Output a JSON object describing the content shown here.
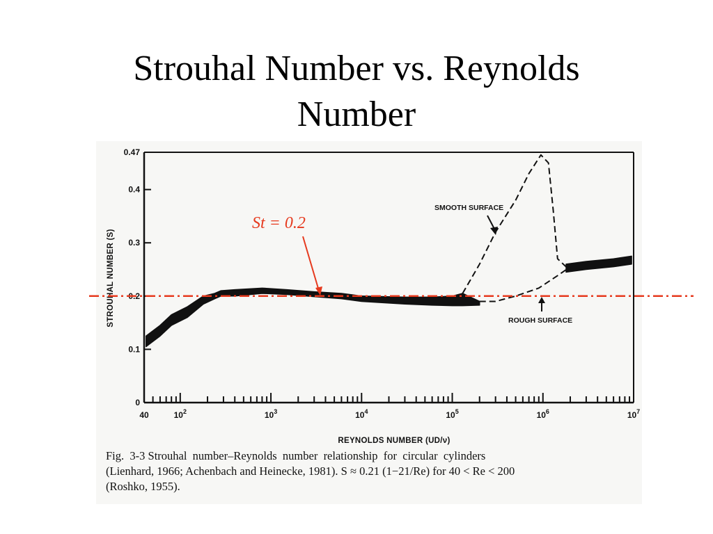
{
  "slide": {
    "title_line1": "Strouhal Number vs. Reynolds",
    "title_line2": "Number"
  },
  "chart_data": {
    "type": "line",
    "xlabel": "REYNOLDS NUMBER (UD/ν)",
    "ylabel": "STROUHAL NUMBER (S)",
    "x_scale": "log",
    "xlim": [
      40,
      10000000
    ],
    "ylim": [
      0,
      0.47
    ],
    "x_ticks": [
      {
        "value": 40,
        "label": "40"
      },
      {
        "value": 100,
        "label": "10",
        "exp": "2"
      },
      {
        "value": 1000,
        "label": "10",
        "exp": "3"
      },
      {
        "value": 10000,
        "label": "10",
        "exp": "4"
      },
      {
        "value": 100000,
        "label": "10",
        "exp": "5"
      },
      {
        "value": 1000000,
        "label": "10",
        "exp": "6"
      },
      {
        "value": 10000000,
        "label": "10",
        "exp": "7"
      }
    ],
    "y_ticks": [
      {
        "value": 0,
        "label": "0"
      },
      {
        "value": 0.1,
        "label": "0.1"
      },
      {
        "value": 0.2,
        "label": "0.2"
      },
      {
        "value": 0.3,
        "label": "0.3"
      },
      {
        "value": 0.4,
        "label": "0.4"
      },
      {
        "value": 0.47,
        "label": "0.47"
      }
    ],
    "grid": false,
    "series": [
      {
        "style": "band",
        "upper": [
          [
            42,
            0.125
          ],
          [
            60,
            0.145
          ],
          [
            80,
            0.165
          ],
          [
            120,
            0.18
          ],
          [
            180,
            0.2
          ],
          [
            240,
            0.205
          ],
          [
            280,
            0.21
          ],
          [
            400,
            0.212
          ],
          [
            800,
            0.215
          ],
          [
            1500,
            0.212
          ],
          [
            3000,
            0.208
          ],
          [
            6000,
            0.205
          ],
          [
            10000,
            0.2
          ],
          [
            30000,
            0.198
          ],
          [
            60000,
            0.198
          ],
          [
            100000,
            0.2
          ],
          [
            130000,
            0.205
          ],
          [
            200000,
            0.19
          ]
        ],
        "lower": [
          [
            42,
            0.105
          ],
          [
            60,
            0.125
          ],
          [
            80,
            0.145
          ],
          [
            120,
            0.16
          ],
          [
            180,
            0.185
          ],
          [
            240,
            0.195
          ],
          [
            280,
            0.2
          ],
          [
            400,
            0.2
          ],
          [
            800,
            0.205
          ],
          [
            1500,
            0.203
          ],
          [
            3000,
            0.199
          ],
          [
            6000,
            0.195
          ],
          [
            10000,
            0.19
          ],
          [
            30000,
            0.185
          ],
          [
            60000,
            0.183
          ],
          [
            100000,
            0.182
          ],
          [
            130000,
            0.182
          ],
          [
            200000,
            0.183
          ]
        ]
      },
      {
        "style": "band",
        "upper": [
          [
            1800000,
            0.26
          ],
          [
            3000000,
            0.265
          ],
          [
            6000000,
            0.27
          ],
          [
            9500000,
            0.275
          ]
        ],
        "lower": [
          [
            1800000,
            0.245
          ],
          [
            3000000,
            0.25
          ],
          [
            6000000,
            0.255
          ],
          [
            9500000,
            0.26
          ]
        ]
      },
      {
        "name": "SMOOTH SURFACE",
        "style": "dashed",
        "points": [
          [
            130000,
            0.205
          ],
          [
            200000,
            0.26
          ],
          [
            300000,
            0.32
          ],
          [
            500000,
            0.38
          ],
          [
            700000,
            0.43
          ],
          [
            950000,
            0.465
          ],
          [
            1150000,
            0.45
          ],
          [
            1300000,
            0.36
          ],
          [
            1450000,
            0.27
          ],
          [
            1800000,
            0.255
          ]
        ]
      },
      {
        "name": "ROUGH SURFACE",
        "style": "dashed",
        "points": [
          [
            200000,
            0.19
          ],
          [
            300000,
            0.19
          ],
          [
            500000,
            0.2
          ],
          [
            900000,
            0.215
          ],
          [
            1500000,
            0.24
          ],
          [
            2000000,
            0.255
          ]
        ]
      }
    ],
    "reference_line": {
      "value": 0.2,
      "color": "#e63a1e",
      "style": "dash-dot"
    },
    "annotations": [
      {
        "text": "SMOOTH SURFACE"
      },
      {
        "text": "ROUGH SURFACE"
      },
      {
        "text": "St = 0.2"
      }
    ],
    "caption": {
      "fig_label": "Fig.  3-3",
      "line1": " Strouhal  number–Reynolds  number  relationship  for  circular  cylinders",
      "line2": "(Lienhard, 1966; Achenbach and Heinecke, 1981).  S ≈ 0.21 (1−21/Re)  for  40 < Re < 200",
      "line3": "(Roshko, 1955)."
    }
  }
}
